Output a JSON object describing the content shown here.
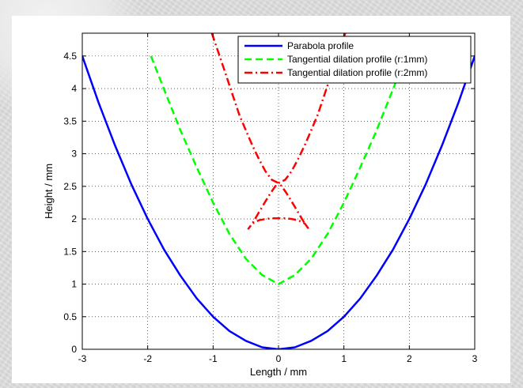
{
  "chart_data": {
    "type": "line",
    "title": "",
    "xlabel": "Length / mm",
    "ylabel": "Height / mm",
    "xlim": [
      -3,
      3
    ],
    "ylim": [
      0,
      4.85
    ],
    "xticks": [
      -3,
      -2,
      -1,
      0,
      1,
      2,
      3
    ],
    "yticks": [
      0,
      0.5,
      1,
      1.5,
      2,
      2.5,
      3,
      3.5,
      4,
      4.5
    ],
    "xtick_labels": [
      "-3",
      "-2",
      "-1",
      "0",
      "1",
      "2",
      "3"
    ],
    "ytick_labels": [
      "0",
      "0.5",
      "1",
      "1.5",
      "2",
      "2.5",
      "3",
      "3.5",
      "4",
      "4.5"
    ],
    "grid": true,
    "legend_placement": "top-right",
    "series": [
      {
        "name": "Parabola profile",
        "color": "#0000ff",
        "style": "solid",
        "x": [
          -3,
          -2.75,
          -2.5,
          -2.25,
          -2,
          -1.75,
          -1.5,
          -1.25,
          -1,
          -0.75,
          -0.5,
          -0.25,
          0,
          0.25,
          0.5,
          0.75,
          1,
          1.25,
          1.5,
          1.75,
          2,
          2.25,
          2.5,
          2.75,
          3
        ],
        "y": [
          4.5,
          3.78,
          3.13,
          2.53,
          2.0,
          1.53,
          1.13,
          0.78,
          0.5,
          0.28,
          0.13,
          0.03,
          0,
          0.03,
          0.13,
          0.28,
          0.5,
          0.78,
          1.13,
          1.53,
          2.0,
          2.53,
          3.13,
          3.78,
          4.5
        ]
      },
      {
        "name": "Tangential dilation profile (r:1mm)",
        "color": "#00ff00",
        "style": "dashed",
        "x": [
          -1.95,
          -1.75,
          -1.5,
          -1.25,
          -1.0,
          -0.75,
          -0.5,
          -0.25,
          0,
          0.25,
          0.5,
          0.75,
          1.0,
          1.25,
          1.5,
          1.75,
          1.95
        ],
        "y": [
          4.5,
          3.99,
          3.36,
          2.79,
          2.25,
          1.77,
          1.39,
          1.14,
          1.0,
          1.14,
          1.39,
          1.77,
          2.25,
          2.79,
          3.36,
          3.99,
          4.5
        ]
      },
      {
        "name": "Tangential dilation profile (r:2mm)",
        "color": "#ff0000",
        "style": "dash-dot",
        "x": [
          -1.02,
          -0.9,
          -0.8,
          -0.7,
          -0.6,
          -0.5,
          -0.4,
          -0.3,
          -0.2,
          -0.1,
          0,
          0.05,
          0.12,
          0.2,
          0.3,
          0.4,
          0.46,
          0.4,
          0.3,
          0.2,
          0.1,
          0,
          -0.1,
          -0.2,
          -0.3,
          -0.4,
          -0.46,
          -0.4,
          -0.3,
          -0.2,
          -0.12,
          -0.05,
          0,
          0.1,
          0.2,
          0.3,
          0.4,
          0.5,
          0.6,
          0.7,
          0.8,
          0.9,
          1.02
        ],
        "y": [
          4.85,
          4.5,
          4.2,
          3.9,
          3.6,
          3.36,
          3.13,
          2.92,
          2.73,
          2.6,
          2.55,
          2.5,
          2.4,
          2.27,
          2.1,
          1.93,
          1.85,
          1.93,
          1.98,
          2.0,
          2.01,
          2.01,
          2.01,
          2.0,
          1.98,
          1.93,
          1.85,
          1.93,
          2.1,
          2.27,
          2.4,
          2.5,
          2.55,
          2.6,
          2.73,
          2.92,
          3.13,
          3.36,
          3.6,
          3.9,
          4.2,
          4.5,
          4.85
        ]
      }
    ]
  }
}
